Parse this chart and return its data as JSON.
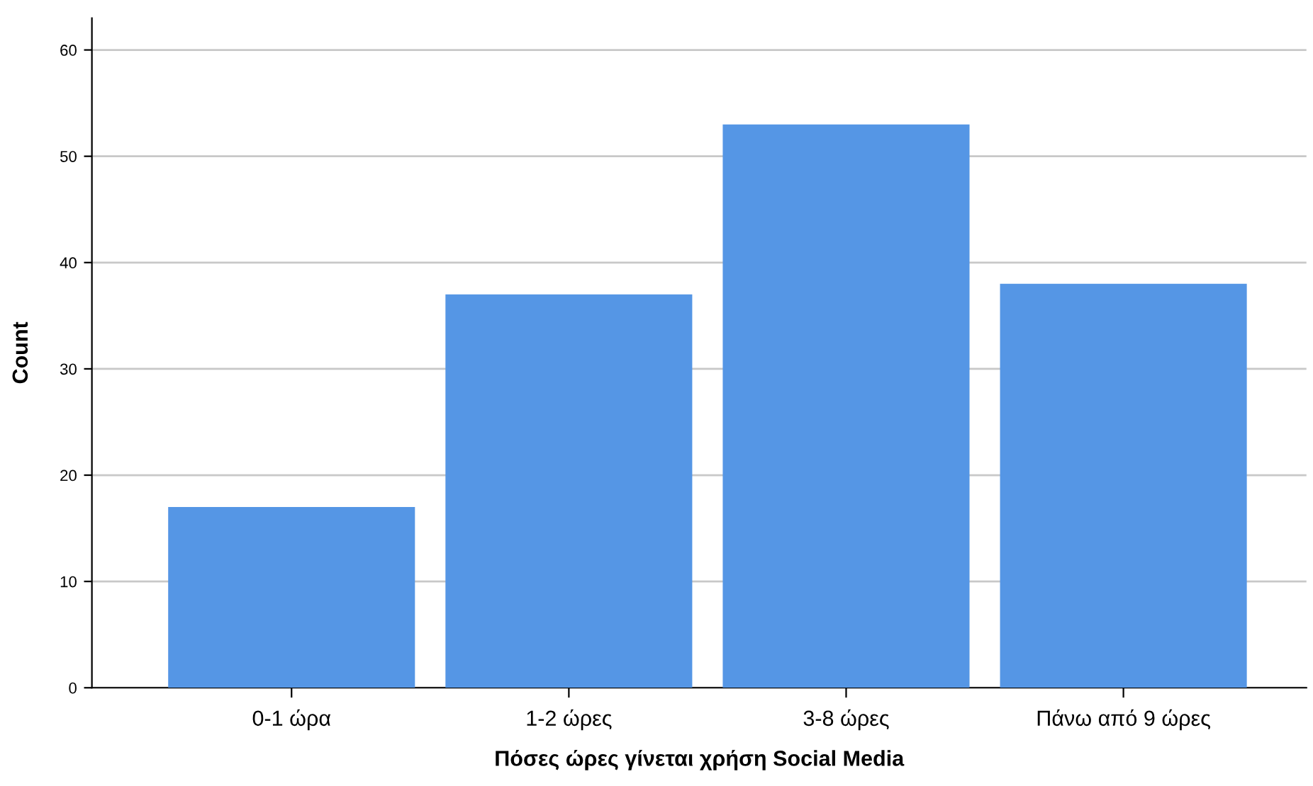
{
  "chart_data": {
    "type": "bar",
    "xlabel": "Πόσες ώρες γίνεται χρήση Social Media",
    "ylabel": "Count",
    "categories": [
      "0-1 ώρα",
      "1-2 ώρες",
      "3-8 ώρες",
      "Πάνω από 9 ώρες"
    ],
    "values": [
      17,
      37,
      53,
      38
    ],
    "color": "#5596e5",
    "ylim": [
      0,
      63
    ],
    "yticks": [
      0,
      10,
      20,
      30,
      40,
      50,
      60
    ],
    "grid": "y",
    "legend": false
  }
}
